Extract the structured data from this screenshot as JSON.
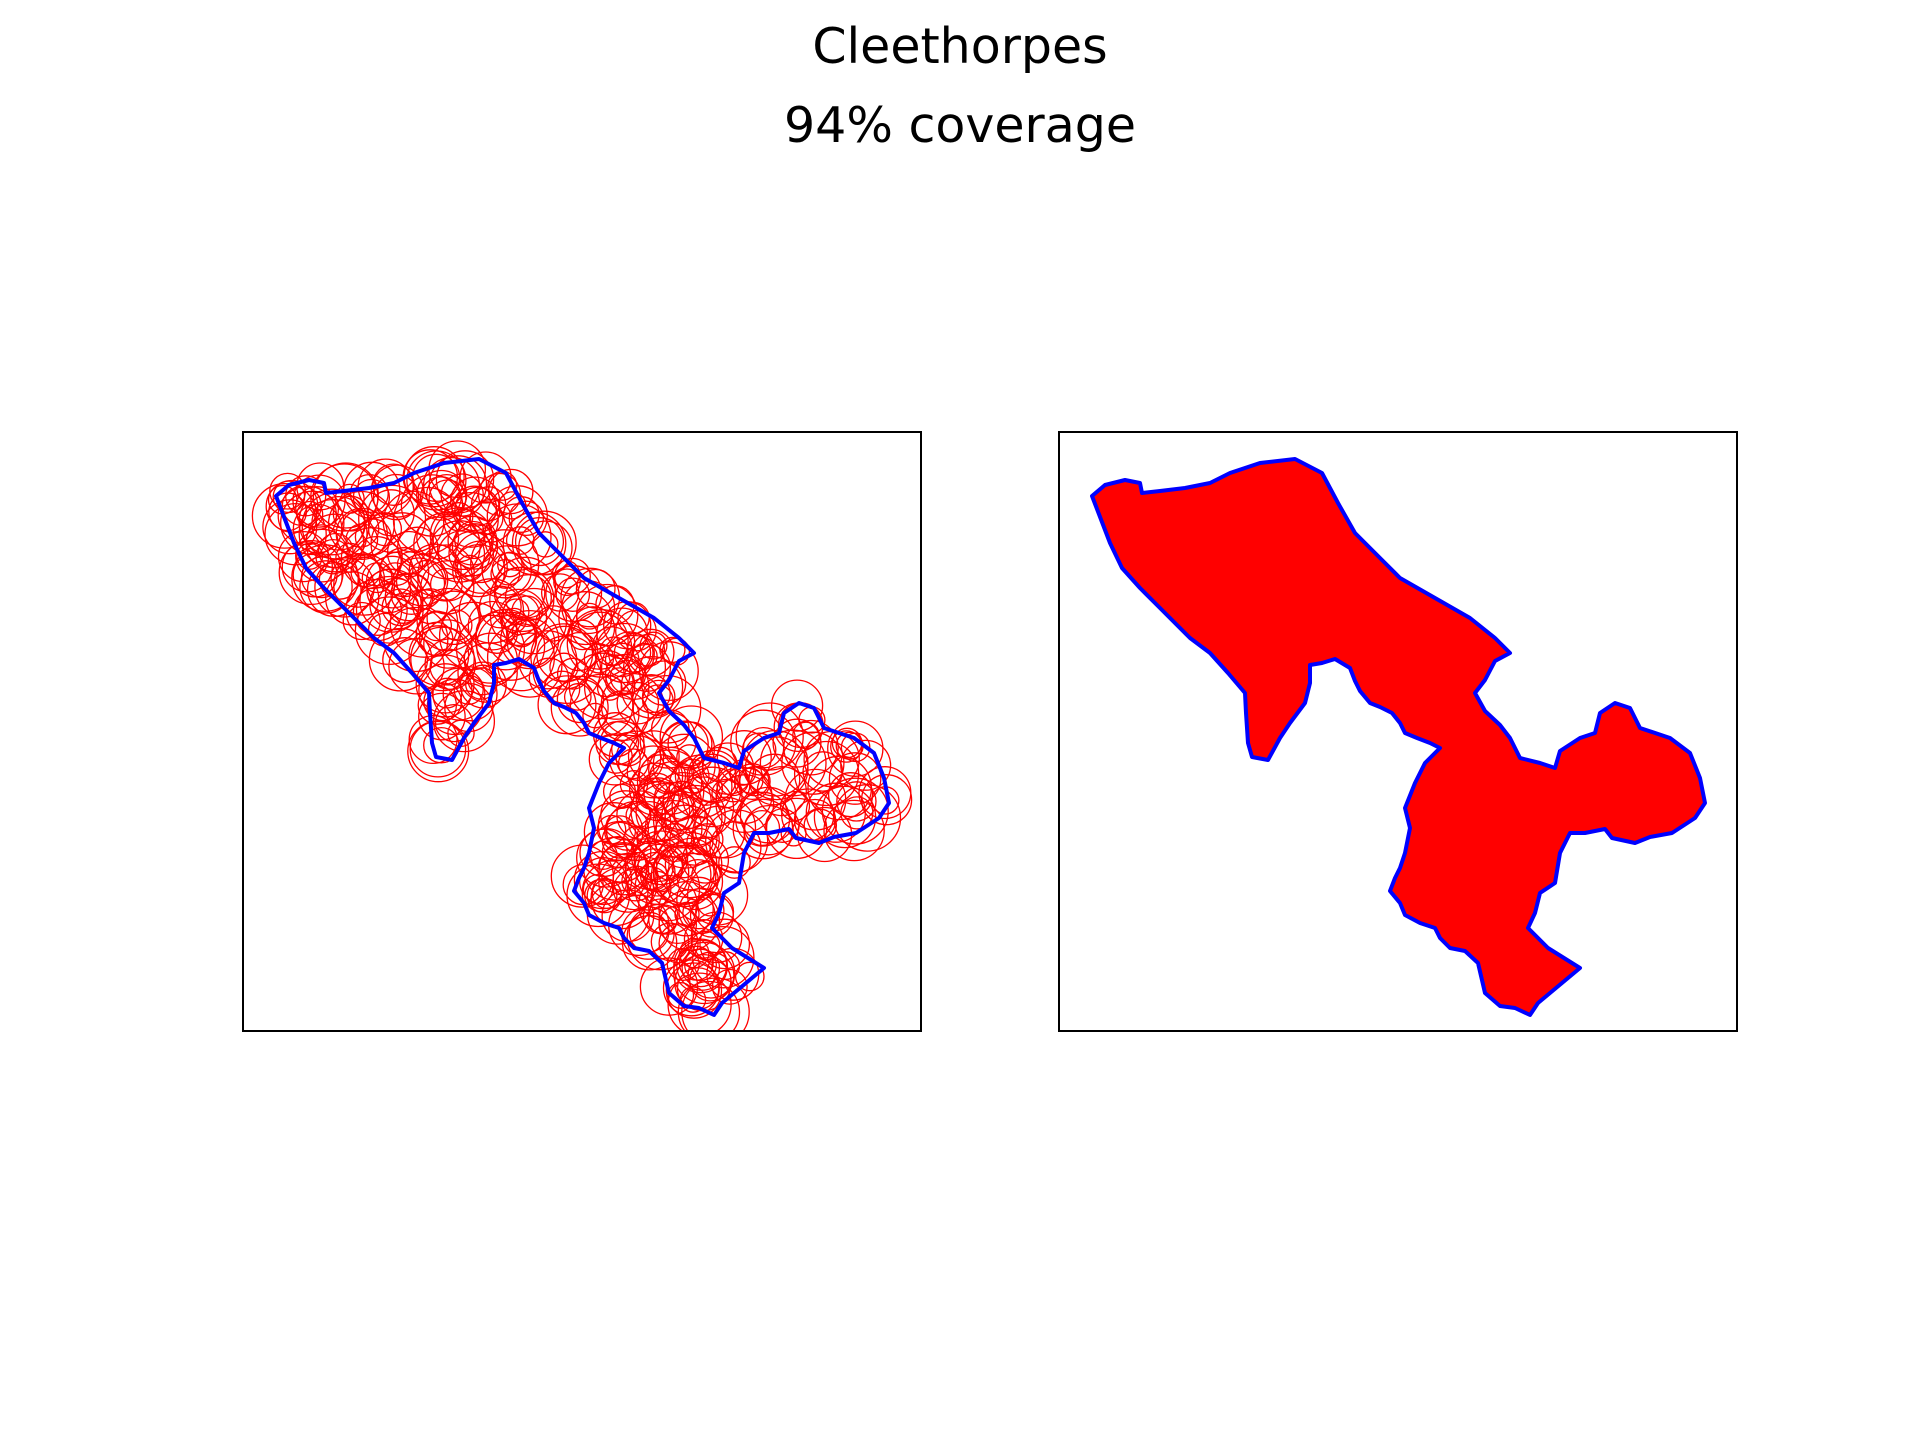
{
  "title": "Cleethorpes",
  "subtitle": "94% coverage",
  "colors": {
    "boundary": "#0000ff",
    "coverage": "#ff0000",
    "frame": "#000000",
    "background": "#ffffff"
  },
  "panels": [
    {
      "name": "circle-packing-panel",
      "style": "circle-outlines"
    },
    {
      "name": "coverage-fill-panel",
      "style": "solid-fill"
    }
  ]
}
